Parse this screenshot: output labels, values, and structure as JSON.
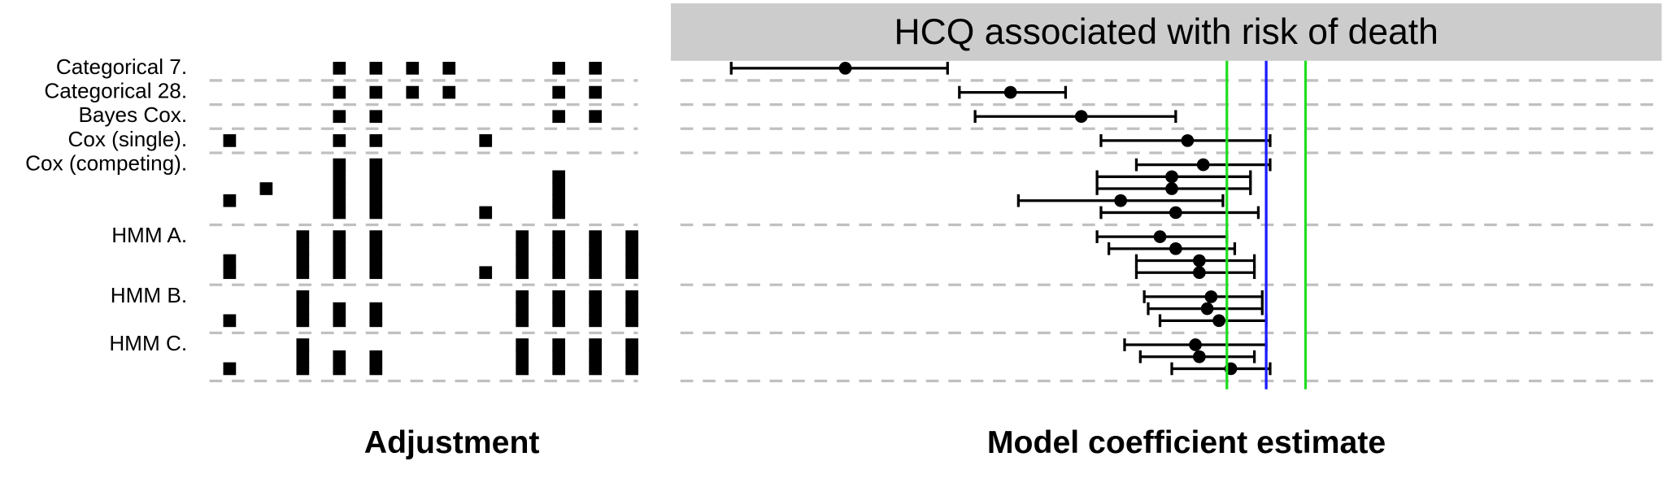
{
  "chart_data": {
    "type": "forest",
    "title": "HCQ associated with risk of death",
    "matrix_label": "Adjustment",
    "xlabel": "Model coefficient estimate",
    "xlim": [
      -1.5,
      1.0
    ],
    "reference_lines": [
      {
        "value": 0,
        "color": "#1a1aff"
      },
      {
        "value": -0.1,
        "color": "#22dd22"
      },
      {
        "value": 0.1,
        "color": "#22dd22"
      }
    ],
    "groups": [
      {
        "label": "Categorical 7.",
        "rows": [
          {
            "estimate": -1.07,
            "lower": -1.36,
            "upper": -0.81,
            "adjustments": [
              3,
              4,
              5,
              6,
              9,
              10
            ]
          }
        ]
      },
      {
        "label": "Categorical 28.",
        "rows": [
          {
            "estimate": -0.65,
            "lower": -0.78,
            "upper": -0.51,
            "adjustments": [
              3,
              4,
              5,
              6,
              9,
              10
            ]
          }
        ]
      },
      {
        "label": "Bayes Cox.",
        "rows": [
          {
            "estimate": -0.47,
            "lower": -0.74,
            "upper": -0.23,
            "adjustments": [
              3,
              4,
              9,
              10
            ]
          }
        ]
      },
      {
        "label": "Cox (single).",
        "rows": [
          {
            "estimate": -0.2,
            "lower": -0.42,
            "upper": 0.01,
            "adjustments": [
              0,
              3,
              4,
              7
            ]
          }
        ]
      },
      {
        "label": "Cox (competing).",
        "rows": [
          {
            "estimate": -0.16,
            "lower": -0.33,
            "upper": 0.01,
            "adjustments": [
              3,
              4
            ]
          },
          {
            "estimate": -0.24,
            "lower": -0.43,
            "upper": -0.04,
            "adjustments": [
              3,
              4,
              9
            ]
          },
          {
            "estimate": -0.24,
            "lower": -0.43,
            "upper": -0.04,
            "adjustments": [
              1,
              3,
              4,
              9
            ]
          },
          {
            "estimate": -0.37,
            "lower": -0.63,
            "upper": -0.11,
            "adjustments": [
              0,
              3,
              4,
              9
            ]
          },
          {
            "estimate": -0.23,
            "lower": -0.42,
            "upper": -0.02,
            "adjustments": [
              3,
              4,
              7,
              9
            ]
          }
        ]
      },
      {
        "label": "HMM A.",
        "rows": [
          {
            "estimate": -0.27,
            "lower": -0.43,
            "upper": -0.1,
            "adjustments": [
              2,
              3,
              4,
              8,
              9,
              10,
              11
            ]
          },
          {
            "estimate": -0.23,
            "lower": -0.4,
            "upper": -0.08,
            "adjustments": [
              2,
              3,
              4,
              8,
              9,
              10,
              11
            ]
          },
          {
            "estimate": -0.17,
            "lower": -0.33,
            "upper": -0.03,
            "adjustments": [
              0,
              2,
              3,
              4,
              8,
              9,
              10,
              11
            ]
          },
          {
            "estimate": -0.17,
            "lower": -0.33,
            "upper": -0.03,
            "adjustments": [
              0,
              2,
              3,
              4,
              7,
              8,
              9,
              10,
              11
            ]
          }
        ]
      },
      {
        "label": "HMM B.",
        "rows": [
          {
            "estimate": -0.14,
            "lower": -0.31,
            "upper": -0.01,
            "adjustments": [
              2,
              8,
              9,
              10,
              11
            ]
          },
          {
            "estimate": -0.15,
            "lower": -0.3,
            "upper": -0.01,
            "adjustments": [
              2,
              3,
              4,
              8,
              9,
              10,
              11
            ]
          },
          {
            "estimate": -0.12,
            "lower": -0.27,
            "upper": 0.0,
            "adjustments": [
              0,
              2,
              3,
              4,
              8,
              9,
              10,
              11
            ]
          }
        ]
      },
      {
        "label": "HMM C.",
        "rows": [
          {
            "estimate": -0.18,
            "lower": -0.36,
            "upper": 0.0,
            "adjustments": [
              2,
              8,
              9,
              10,
              11
            ]
          },
          {
            "estimate": -0.17,
            "lower": -0.32,
            "upper": -0.03,
            "adjustments": [
              2,
              3,
              4,
              8,
              9,
              10,
              11
            ]
          },
          {
            "estimate": -0.09,
            "lower": -0.24,
            "upper": 0.01,
            "adjustments": [
              0,
              2,
              3,
              4,
              8,
              9,
              10,
              11
            ]
          }
        ]
      }
    ]
  }
}
